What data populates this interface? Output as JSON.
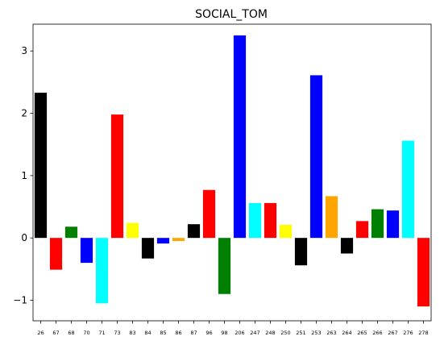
{
  "chart_data": {
    "type": "bar",
    "title": "SOCIAL_TOM",
    "xlabel": "",
    "ylabel": "",
    "ylim": [
      -1.33,
      3.43
    ],
    "yticks": [
      -1,
      0,
      1,
      2,
      3
    ],
    "ytick_labels": [
      "−1",
      "0",
      "1",
      "2",
      "3"
    ],
    "grid": false,
    "legend": "none",
    "categories": [
      "26",
      "67",
      "68",
      "70",
      "71",
      "73",
      "83",
      "84",
      "85",
      "86",
      "87",
      "96",
      "98",
      "206",
      "247",
      "248",
      "250",
      "251",
      "253",
      "263",
      "264",
      "265",
      "266",
      "267",
      "276",
      "278"
    ],
    "values": [
      2.33,
      -0.51,
      0.18,
      -0.4,
      -1.05,
      1.98,
      0.24,
      -0.33,
      -0.09,
      -0.05,
      0.22,
      0.77,
      -0.9,
      3.25,
      0.56,
      0.56,
      0.21,
      -0.44,
      2.61,
      0.67,
      -0.25,
      0.27,
      0.46,
      0.44,
      1.56,
      -1.1
    ],
    "colors": [
      "#000000",
      "#ff0000",
      "#008000",
      "#0000ff",
      "#00ffff",
      "#ff0000",
      "#ffff00",
      "#000000",
      "#0000ff",
      "#ffa500",
      "#000000",
      "#ff0000",
      "#008000",
      "#0000ff",
      "#00ffff",
      "#ff0000",
      "#ffff00",
      "#000000",
      "#0000ff",
      "#ffa500",
      "#000000",
      "#ff0000",
      "#008000",
      "#0000ff",
      "#00ffff",
      "#ff0000"
    ]
  }
}
